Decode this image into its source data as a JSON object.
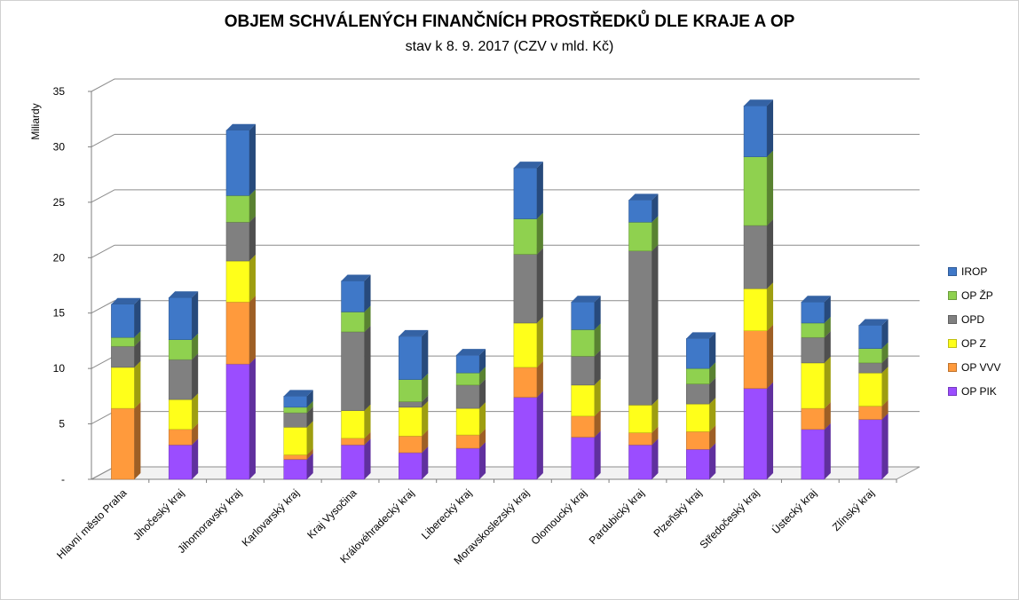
{
  "chart_data": {
    "type": "bar",
    "stacked": true,
    "title": "OBJEM SCHVÁLENÝCH FINANČNÍCH PROSTŘEDKŮ DLE KRAJE A OP",
    "subtitle": "stav k 8. 9. 2017 (CZV v mld. Kč)",
    "ylabel": "Miliardy",
    "ylim": [
      0,
      35
    ],
    "yticks": [
      0,
      5,
      10,
      15,
      20,
      25,
      30,
      35
    ],
    "ytick_labels": [
      "-",
      "5",
      "10",
      "15",
      "20",
      "25",
      "30",
      "35"
    ],
    "grid": true,
    "legend_position": "right",
    "categories": [
      "Hlavní město Praha",
      "Jihočeský kraj",
      "Jihomoravský kraj",
      "Karlovarský kraj",
      "Kraj Vysočina",
      "Královéhradecký kraj",
      "Liberecký kraj",
      "Moravskoslezský kraj",
      "Olomoucký kraj",
      "Pardubický kraj",
      "Plzeňský kraj",
      "Středočeský kraj",
      "Ústecký kraj",
      "Zlínský kraj"
    ],
    "series": [
      {
        "name": "OP PIK",
        "color": "#9b4dff",
        "values": [
          0,
          3.1,
          10.4,
          1.8,
          3.1,
          2.4,
          2.8,
          7.4,
          3.8,
          3.1,
          2.7,
          8.2,
          4.5,
          5.4
        ]
      },
      {
        "name": "OP VVV",
        "color": "#ff9a3c",
        "values": [
          6.4,
          1.4,
          5.6,
          0.4,
          0.6,
          1.5,
          1.2,
          2.7,
          1.9,
          1.1,
          1.6,
          5.2,
          1.9,
          1.2
        ]
      },
      {
        "name": "OP Z",
        "color": "#ffff1a",
        "values": [
          3.7,
          2.7,
          3.7,
          2.5,
          2.5,
          2.6,
          2.4,
          4.0,
          2.8,
          2.5,
          2.5,
          3.8,
          4.1,
          3.0
        ]
      },
      {
        "name": "OPD",
        "color": "#808080",
        "values": [
          1.9,
          3.6,
          3.5,
          1.3,
          7.1,
          0.5,
          2.1,
          6.2,
          2.6,
          13.9,
          1.8,
          5.7,
          2.3,
          0.9
        ]
      },
      {
        "name": "OP ŽP",
        "color": "#8fd14f",
        "values": [
          0.8,
          1.8,
          2.4,
          0.5,
          1.8,
          2.0,
          1.1,
          3.2,
          2.4,
          2.6,
          1.4,
          6.2,
          1.3,
          1.3
        ]
      },
      {
        "name": "IROP",
        "color": "#3f78c8",
        "values": [
          3.0,
          3.8,
          5.9,
          1.0,
          2.8,
          3.9,
          1.6,
          4.6,
          2.5,
          2.0,
          2.7,
          4.6,
          1.9,
          2.1
        ]
      }
    ]
  }
}
